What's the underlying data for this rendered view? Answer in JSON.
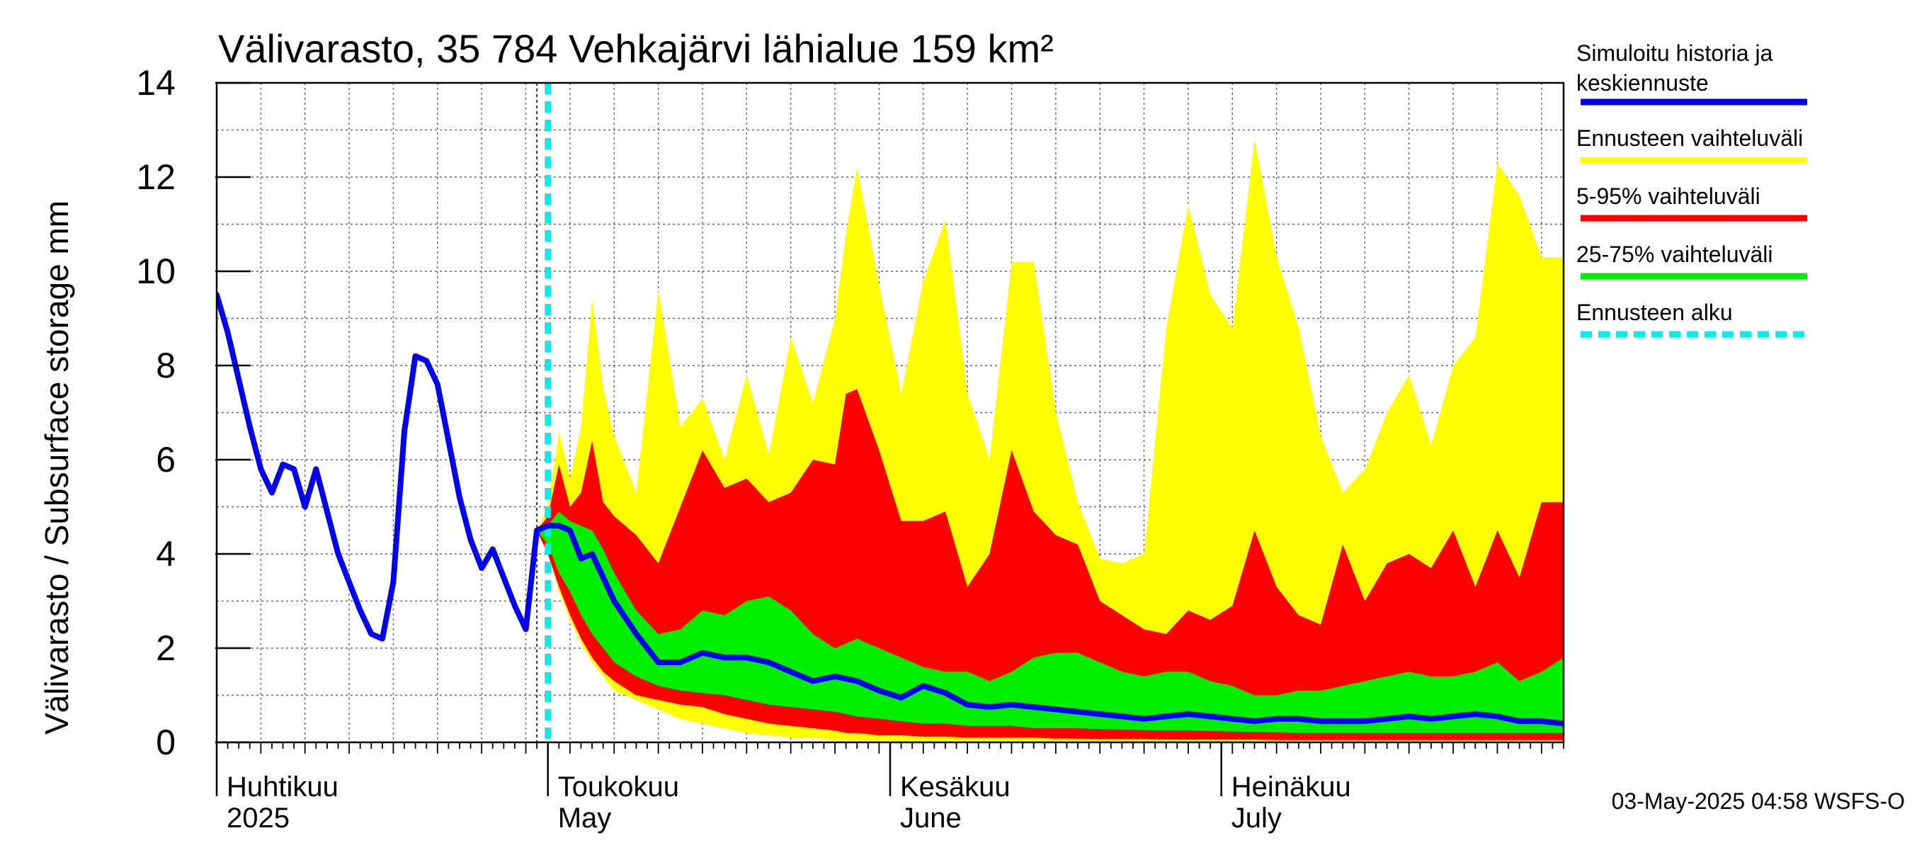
{
  "chart_data": {
    "type": "area",
    "title": "Välivarasto, 35 784 Vehkajärvi lähialue 159 km²",
    "ylabel": "Välivarasto / Subsurface storage  mm",
    "ylim": [
      0,
      14
    ],
    "y_ticks": [
      0,
      2,
      4,
      6,
      8,
      10,
      12,
      14
    ],
    "x_unit": "days since 2025-04-01",
    "xlim": [
      0,
      122
    ],
    "month_labels": [
      {
        "day": 0,
        "line1": "Huhtikuu",
        "line2": "2025"
      },
      {
        "day": 30,
        "line1": "Toukokuu",
        "line2": "May"
      },
      {
        "day": 61,
        "line1": "Kesäkuu",
        "line2": "June"
      },
      {
        "day": 91,
        "line1": "Heinäkuu",
        "line2": "July"
      }
    ],
    "forecast_start_day": 30,
    "series": [
      {
        "name": "Simuloitu historia ja keskiennuste",
        "color": "#0000ee",
        "x": [
          0,
          1,
          2,
          3,
          4,
          5,
          6,
          7,
          8,
          9,
          10,
          11,
          12,
          13,
          14,
          15,
          16,
          17,
          18,
          19,
          20,
          21,
          22,
          23,
          24,
          25,
          26,
          27,
          28,
          29,
          30,
          31,
          32,
          33,
          34,
          35,
          36,
          38,
          40,
          42,
          44,
          46,
          48,
          50,
          52,
          54,
          56,
          58,
          60,
          62,
          64,
          66,
          68,
          70,
          72,
          74,
          76,
          78,
          80,
          82,
          84,
          86,
          88,
          90,
          92,
          94,
          96,
          98,
          100,
          102,
          104,
          106,
          108,
          110,
          112,
          114,
          116,
          118,
          120,
          122
        ],
        "values": [
          9.5,
          8.7,
          7.7,
          6.7,
          5.8,
          5.3,
          5.9,
          5.8,
          5.0,
          5.8,
          4.9,
          4.0,
          3.4,
          2.8,
          2.3,
          2.2,
          3.4,
          6.6,
          8.2,
          8.1,
          7.6,
          6.4,
          5.2,
          4.3,
          3.7,
          4.1,
          3.5,
          2.9,
          2.4,
          4.5,
          4.6,
          4.6,
          4.5,
          3.9,
          4.0,
          3.5,
          3.0,
          2.3,
          1.7,
          1.7,
          1.9,
          1.8,
          1.8,
          1.7,
          1.5,
          1.3,
          1.4,
          1.3,
          1.1,
          0.95,
          1.2,
          1.05,
          0.8,
          0.75,
          0.8,
          0.75,
          0.7,
          0.65,
          0.6,
          0.55,
          0.5,
          0.55,
          0.6,
          0.55,
          0.5,
          0.45,
          0.5,
          0.5,
          0.45,
          0.45,
          0.45,
          0.5,
          0.55,
          0.5,
          0.55,
          0.6,
          0.55,
          0.45,
          0.45,
          0.4
        ]
      },
      {
        "name": "Ennusteen vaihteluväli",
        "color": "#ffff00",
        "x": [
          29,
          30,
          31,
          32,
          33,
          34,
          35,
          36,
          38,
          40,
          42,
          44,
          46,
          48,
          50,
          52,
          54,
          56,
          57,
          58,
          60,
          62,
          64,
          66,
          68,
          70,
          72,
          74,
          76,
          78,
          80,
          82,
          84,
          86,
          88,
          90,
          92,
          94,
          96,
          98,
          100,
          102,
          104,
          106,
          108,
          110,
          112,
          114,
          116,
          118,
          120,
          122
        ],
        "upper": [
          4.5,
          5.0,
          6.6,
          5.6,
          6.7,
          9.4,
          7.5,
          6.5,
          5.3,
          9.6,
          6.7,
          7.3,
          6.0,
          7.8,
          6.1,
          8.6,
          7.2,
          9.0,
          10.8,
          12.2,
          9.7,
          7.4,
          9.8,
          11.1,
          7.4,
          6.0,
          10.2,
          10.2,
          7.0,
          5.1,
          3.9,
          3.8,
          4.0,
          8.8,
          11.4,
          9.5,
          8.8,
          12.8,
          10.3,
          8.8,
          6.5,
          5.3,
          5.8,
          7.0,
          7.8,
          6.3,
          8.0,
          8.6,
          12.3,
          11.6,
          10.3,
          10.3
        ],
        "lower": [
          4.5,
          4.0,
          3.2,
          2.6,
          2.1,
          1.7,
          1.4,
          1.1,
          0.9,
          0.7,
          0.5,
          0.4,
          0.3,
          0.2,
          0.15,
          0.1,
          0.1,
          0.05,
          0.05,
          0.05,
          0.02,
          0.0,
          0.0,
          0.0,
          0.0,
          0.0,
          0.0,
          0.0,
          0.0,
          0.0,
          0.0,
          0.0,
          0.0,
          0.0,
          0.0,
          0.0,
          0.0,
          0.0,
          0.0,
          0.0,
          0.0,
          0.0,
          0.0,
          0.0,
          0.0,
          0.0,
          0.0,
          0.0,
          0.0,
          0.0,
          0.0,
          0.0
        ]
      },
      {
        "name": "5-95% vaihteluväli",
        "color": "#ff0000",
        "x": [
          29,
          30,
          31,
          32,
          33,
          34,
          35,
          36,
          38,
          40,
          42,
          44,
          46,
          48,
          50,
          52,
          54,
          56,
          57,
          58,
          60,
          62,
          64,
          66,
          68,
          70,
          72,
          74,
          76,
          78,
          80,
          82,
          84,
          86,
          88,
          90,
          92,
          94,
          96,
          98,
          100,
          102,
          104,
          106,
          108,
          110,
          112,
          114,
          116,
          118,
          120,
          122
        ],
        "upper": [
          4.5,
          4.8,
          5.9,
          5.0,
          5.3,
          6.4,
          5.1,
          4.8,
          4.4,
          3.8,
          5.0,
          6.2,
          5.4,
          5.6,
          5.1,
          5.3,
          6.0,
          5.9,
          7.4,
          7.5,
          6.2,
          4.7,
          4.7,
          4.9,
          3.3,
          4.0,
          6.2,
          4.9,
          4.4,
          4.2,
          3.0,
          2.7,
          2.4,
          2.3,
          2.8,
          2.6,
          2.9,
          4.5,
          3.3,
          2.7,
          2.5,
          4.2,
          3.0,
          3.8,
          4.0,
          3.7,
          4.5,
          3.3,
          4.5,
          3.5,
          5.1,
          5.1
        ],
        "lower": [
          4.5,
          4.0,
          3.3,
          2.7,
          2.2,
          1.8,
          1.5,
          1.3,
          1.0,
          0.9,
          0.8,
          0.75,
          0.6,
          0.5,
          0.4,
          0.35,
          0.3,
          0.25,
          0.2,
          0.2,
          0.15,
          0.15,
          0.12,
          0.12,
          0.1,
          0.1,
          0.1,
          0.1,
          0.08,
          0.08,
          0.07,
          0.07,
          0.07,
          0.06,
          0.06,
          0.06,
          0.06,
          0.06,
          0.05,
          0.05,
          0.05,
          0.05,
          0.05,
          0.05,
          0.05,
          0.05,
          0.05,
          0.05,
          0.05,
          0.05,
          0.05,
          0.05
        ]
      },
      {
        "name": "25-75% vaihteluväli",
        "color": "#00ee00",
        "x": [
          29,
          30,
          31,
          32,
          33,
          34,
          35,
          36,
          38,
          40,
          42,
          44,
          46,
          48,
          50,
          52,
          54,
          56,
          57,
          58,
          60,
          62,
          64,
          66,
          68,
          70,
          72,
          74,
          76,
          78,
          80,
          82,
          84,
          86,
          88,
          90,
          92,
          94,
          96,
          98,
          100,
          102,
          104,
          106,
          108,
          110,
          112,
          114,
          116,
          118,
          120,
          122
        ],
        "upper": [
          4.5,
          4.6,
          4.9,
          4.7,
          4.6,
          4.5,
          4.1,
          3.6,
          2.8,
          2.3,
          2.4,
          2.8,
          2.7,
          3.0,
          3.1,
          2.8,
          2.3,
          2.0,
          2.1,
          2.2,
          2.0,
          1.8,
          1.6,
          1.5,
          1.5,
          1.3,
          1.5,
          1.8,
          1.9,
          1.9,
          1.7,
          1.5,
          1.4,
          1.5,
          1.5,
          1.3,
          1.2,
          1.0,
          1.0,
          1.1,
          1.1,
          1.2,
          1.3,
          1.4,
          1.5,
          1.4,
          1.4,
          1.5,
          1.7,
          1.3,
          1.5,
          1.8
        ],
        "lower": [
          4.5,
          4.2,
          3.6,
          3.2,
          2.7,
          2.3,
          2.0,
          1.7,
          1.4,
          1.2,
          1.1,
          1.05,
          1.0,
          0.9,
          0.8,
          0.75,
          0.7,
          0.65,
          0.6,
          0.55,
          0.5,
          0.45,
          0.4,
          0.4,
          0.35,
          0.35,
          0.35,
          0.3,
          0.3,
          0.3,
          0.28,
          0.27,
          0.26,
          0.25,
          0.25,
          0.24,
          0.23,
          0.22,
          0.21,
          0.2,
          0.2,
          0.2,
          0.2,
          0.2,
          0.2,
          0.2,
          0.2,
          0.2,
          0.2,
          0.2,
          0.2,
          0.2
        ]
      },
      {
        "name": "Ennusteen alku",
        "color": "#00eeee"
      }
    ],
    "grid": true,
    "legend_placement": "right"
  },
  "legend": {
    "items": [
      {
        "line1": "Simuloitu historia ja",
        "line2": "keskiennuste",
        "color": "#0000ee",
        "style": "solid"
      },
      {
        "line1": "Ennusteen vaihteluväli",
        "line2": "",
        "color": "#ffff00",
        "style": "solid"
      },
      {
        "line1": "5-95% vaihteluväli",
        "line2": "",
        "color": "#ff0000",
        "style": "solid"
      },
      {
        "line1": "25-75% vaihteluväli",
        "line2": "",
        "color": "#00ee00",
        "style": "solid"
      },
      {
        "line1": "Ennusteen alku",
        "line2": "",
        "color": "#00eeee",
        "style": "dashed"
      }
    ]
  },
  "footer": {
    "timestamp": "03-May-2025 04:58 WSFS-O"
  }
}
